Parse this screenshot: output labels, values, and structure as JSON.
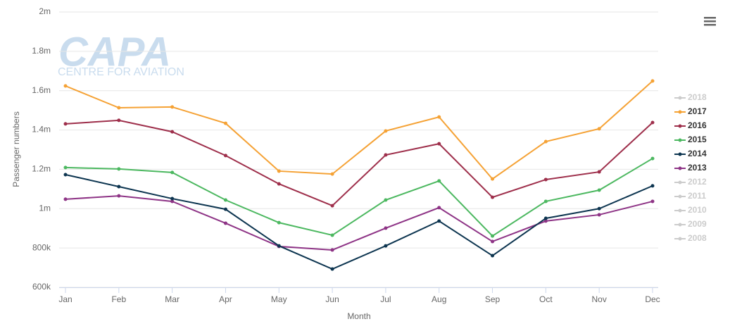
{
  "chart_data": {
    "type": "line",
    "watermark": {
      "title": "CAPA",
      "subtitle": "CENTRE FOR AVIATION"
    },
    "y_label": "Passenger numbers",
    "x_label": "Month",
    "categories": [
      "Jan",
      "Feb",
      "Mar",
      "Apr",
      "May",
      "Jun",
      "Jul",
      "Aug",
      "Sep",
      "Oct",
      "Nov",
      "Dec"
    ],
    "ylim": [
      600000,
      2000000
    ],
    "yticks": [
      {
        "value": 600000,
        "label": "600k"
      },
      {
        "value": 800000,
        "label": "800k"
      },
      {
        "value": 1000000,
        "label": "1m"
      },
      {
        "value": 1200000,
        "label": "1.2m"
      },
      {
        "value": 1400000,
        "label": "1.4m"
      },
      {
        "value": 1600000,
        "label": "1.6m"
      },
      {
        "value": 1800000,
        "label": "1.8m"
      },
      {
        "value": 2000000,
        "label": "2m"
      }
    ],
    "grid": true,
    "legend": "right",
    "series": [
      {
        "name": "2018",
        "color": "#cccccc",
        "visible": false
      },
      {
        "name": "2017",
        "color": "#f5a235",
        "visible": true,
        "values": [
          1624000,
          1513000,
          1517000,
          1434000,
          1191000,
          1176000,
          1395000,
          1466000,
          1151000,
          1341000,
          1406000,
          1649000
        ]
      },
      {
        "name": "2016",
        "color": "#9e2f4b",
        "visible": true,
        "values": [
          1431000,
          1449000,
          1391000,
          1270000,
          1126000,
          1015000,
          1273000,
          1330000,
          1058000,
          1148000,
          1187000,
          1438000
        ]
      },
      {
        "name": "2015",
        "color": "#4cb860",
        "visible": true,
        "values": [
          1209000,
          1202000,
          1184000,
          1044000,
          929000,
          865000,
          1044000,
          1141000,
          861000,
          1037000,
          1094000,
          1255000
        ]
      },
      {
        "name": "2014",
        "color": "#0d3550",
        "visible": true,
        "values": [
          1173000,
          1112000,
          1051000,
          997000,
          811000,
          693000,
          811000,
          937000,
          761000,
          951000,
          1000000,
          1116000
        ]
      },
      {
        "name": "2013",
        "color": "#8e3486",
        "visible": true,
        "values": [
          1048000,
          1065000,
          1037000,
          926000,
          808000,
          790000,
          901000,
          1005000,
          833000,
          937000,
          969000,
          1037000
        ]
      },
      {
        "name": "2012",
        "color": "#cccccc",
        "visible": false
      },
      {
        "name": "2011",
        "color": "#cccccc",
        "visible": false
      },
      {
        "name": "2010",
        "color": "#cccccc",
        "visible": false
      },
      {
        "name": "2009",
        "color": "#cccccc",
        "visible": false
      },
      {
        "name": "2008",
        "color": "#cccccc",
        "visible": false
      }
    ]
  }
}
